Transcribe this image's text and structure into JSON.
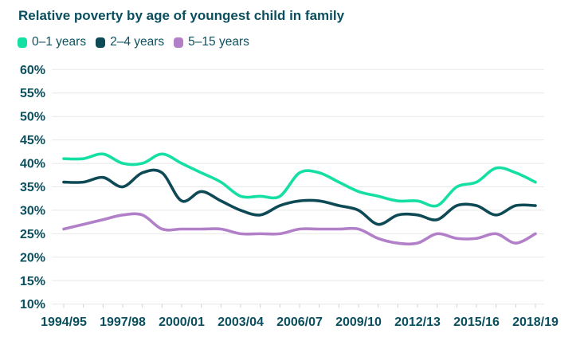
{
  "title": "Relative poverty by age of youngest child in family",
  "legend": [
    {
      "label": "0–1 years",
      "color": "#15dfa2"
    },
    {
      "label": "2–4 years",
      "color": "#0d4a56"
    },
    {
      "label": "5–15 years",
      "color": "#b27fc9"
    }
  ],
  "chart_data": {
    "type": "line",
    "title": "Relative poverty by age of youngest child in family",
    "x": [
      "1994/95",
      "1995/96",
      "1996/97",
      "1997/98",
      "1998/99",
      "1999/00",
      "2000/01",
      "2001/02",
      "2002/03",
      "2003/04",
      "2004/05",
      "2005/06",
      "2006/07",
      "2007/08",
      "2008/09",
      "2009/10",
      "2010/11",
      "2011/12",
      "2012/13",
      "2013/14",
      "2014/15",
      "2015/16",
      "2016/17",
      "2017/18",
      "2018/19"
    ],
    "x_tick_every": 3,
    "series": [
      {
        "name": "0–1 years",
        "color": "#15dfa2",
        "values": [
          41,
          41,
          42,
          40,
          40,
          42,
          40,
          38,
          36,
          33,
          33,
          33,
          38,
          38,
          36,
          34,
          33,
          32,
          32,
          31,
          35,
          36,
          39,
          38,
          36
        ]
      },
      {
        "name": "2–4 years",
        "color": "#0d4a56",
        "values": [
          36,
          36,
          37,
          35,
          38,
          38,
          32,
          34,
          32,
          30,
          29,
          31,
          32,
          32,
          31,
          30,
          27,
          29,
          29,
          28,
          31,
          31,
          29,
          31,
          31
        ]
      },
      {
        "name": "5–15 years",
        "color": "#b27fc9",
        "values": [
          26,
          27,
          28,
          29,
          29,
          26,
          26,
          26,
          26,
          25,
          25,
          25,
          26,
          26,
          26,
          26,
          24,
          23,
          23,
          25,
          24,
          24,
          25,
          23,
          25
        ]
      }
    ],
    "ylim": [
      10,
      60
    ],
    "ytick_step": 5,
    "ytick_suffix": "%",
    "grid": true,
    "legend_position": "top-left",
    "colors": {
      "text": "#0a4f5e",
      "gridline": "#e8e8e8",
      "tick": "#d4d4d4",
      "background": "#ffffff"
    }
  }
}
